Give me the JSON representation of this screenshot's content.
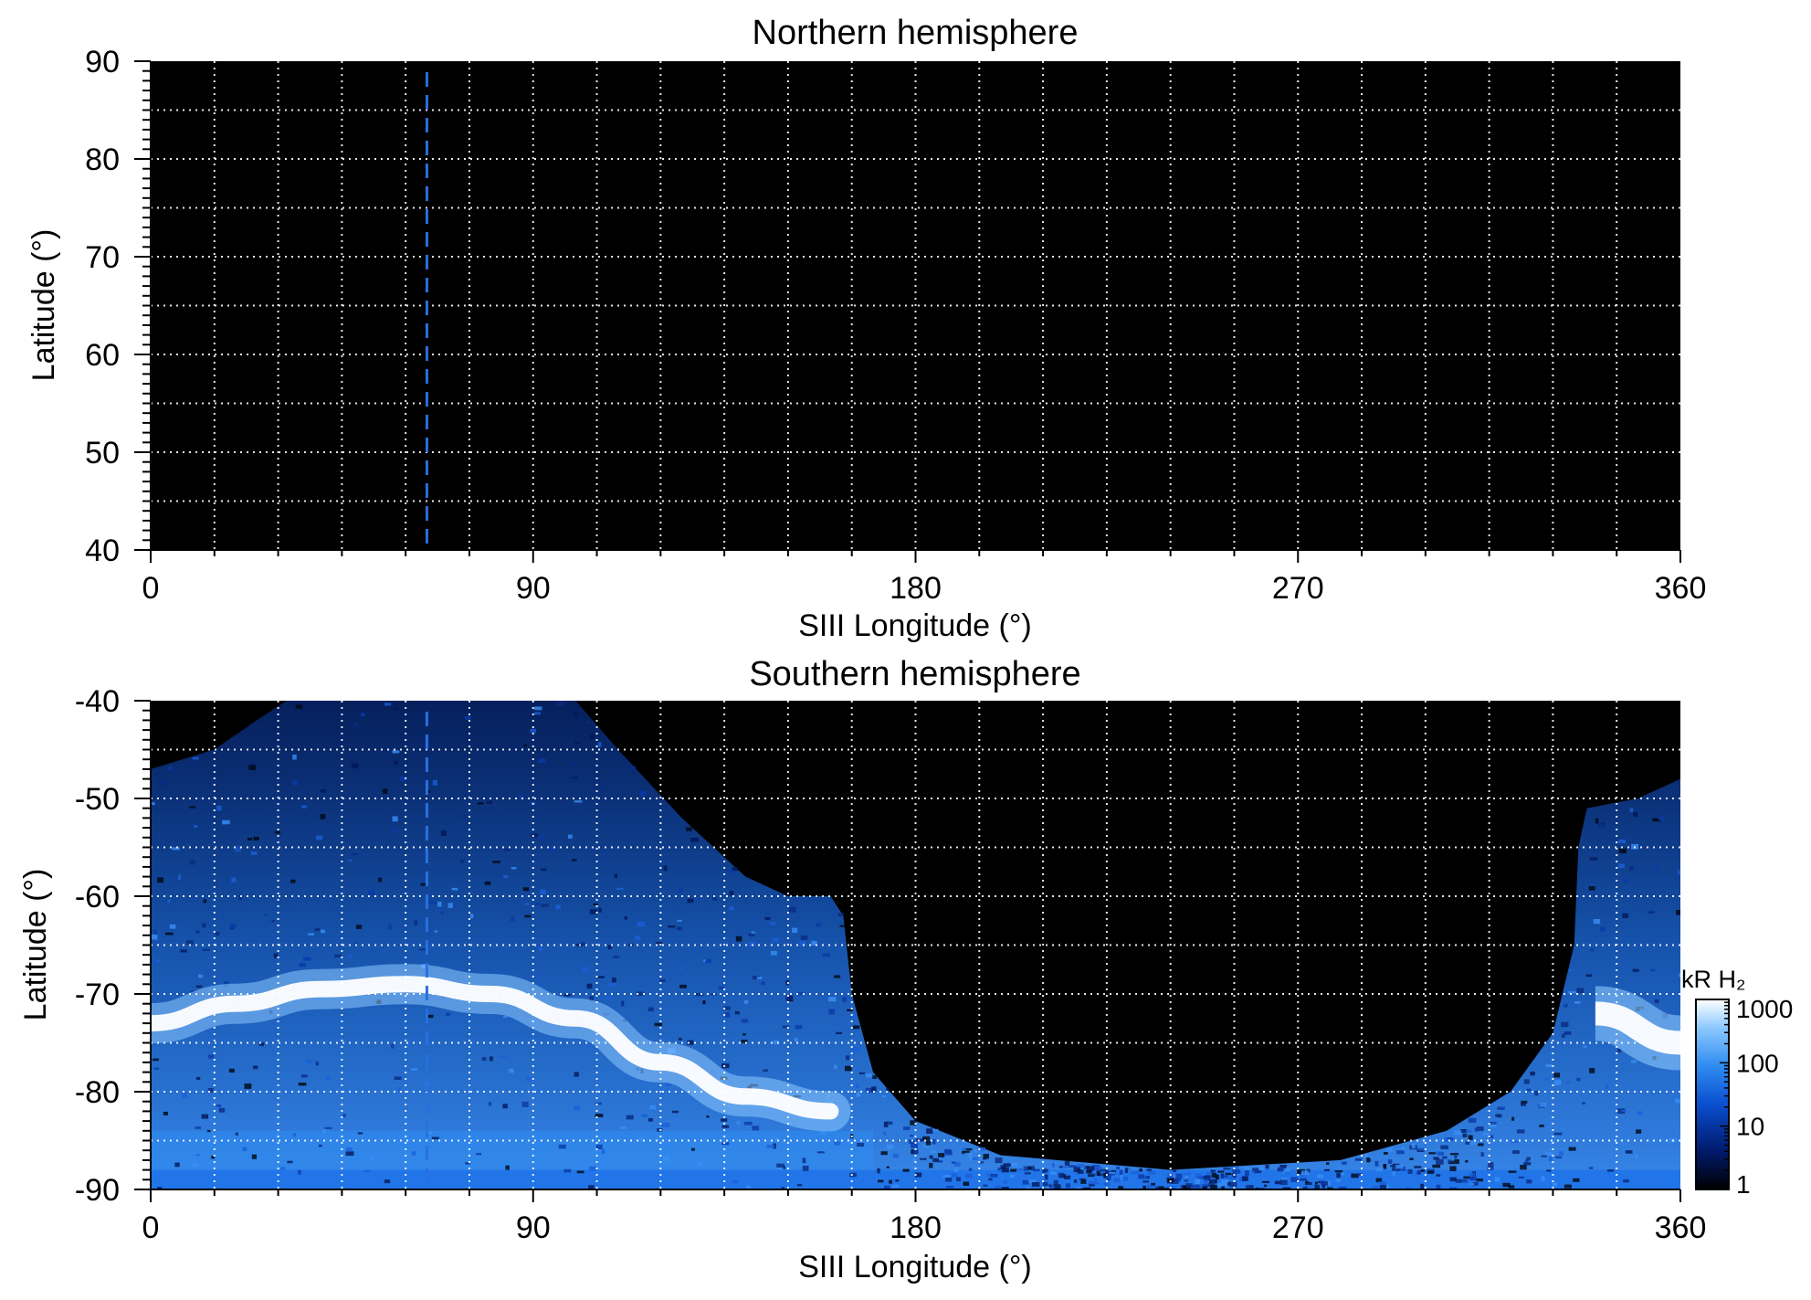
{
  "chart_data": [
    {
      "type": "heatmap",
      "title": "Northern hemisphere",
      "xlabel": "SIII Longitude (°)",
      "ylabel": "Latitude (°)",
      "xlim": [
        0,
        360
      ],
      "ylim": [
        40,
        90
      ],
      "xticks": [
        "0",
        "90",
        "180",
        "270",
        "360"
      ],
      "yticks": [
        "40",
        "50",
        "60",
        "70",
        "80",
        "90"
      ],
      "grid": true,
      "grid_x_step": 15,
      "grid_y_step": 5,
      "background_color": "#000000",
      "grid_color": "#ffffff",
      "marker_line": {
        "x": 65,
        "style": "dashed",
        "color": "#2a6fe0"
      },
      "emission": "none"
    },
    {
      "type": "heatmap",
      "title": "Southern hemisphere",
      "xlabel": "SIII Longitude (°)",
      "ylabel": "Latitude (°)",
      "xlim": [
        0,
        360
      ],
      "ylim": [
        -90,
        -40
      ],
      "xticks": [
        "0",
        "90",
        "180",
        "270",
        "360"
      ],
      "yticks": [
        "-40",
        "-50",
        "-60",
        "-70",
        "-80",
        "-90"
      ],
      "grid": true,
      "grid_x_step": 15,
      "grid_y_step": 5,
      "background_color": "#000000",
      "grid_color": "#ffffff",
      "marker_line": {
        "x": 65,
        "style": "dashed",
        "color": "#2a6fe0"
      },
      "main_oval": [
        {
          "x": 0,
          "y": -73
        },
        {
          "x": 20,
          "y": -71
        },
        {
          "x": 40,
          "y": -69.5
        },
        {
          "x": 60,
          "y": -69
        },
        {
          "x": 80,
          "y": -70
        },
        {
          "x": 100,
          "y": -72.5
        },
        {
          "x": 120,
          "y": -77
        },
        {
          "x": 140,
          "y": -80.5
        },
        {
          "x": 160,
          "y": -82
        },
        {
          "x": 340,
          "y": -72
        },
        {
          "x": 360,
          "y": -75
        }
      ],
      "emission_boundary": [
        {
          "x": 0,
          "y": -47
        },
        {
          "x": 15,
          "y": -45
        },
        {
          "x": 25,
          "y": -42
        },
        {
          "x": 32,
          "y": -40
        },
        {
          "x": 100,
          "y": -40
        },
        {
          "x": 110,
          "y": -45
        },
        {
          "x": 125,
          "y": -52
        },
        {
          "x": 140,
          "y": -58
        },
        {
          "x": 150,
          "y": -60
        },
        {
          "x": 160,
          "y": -60
        },
        {
          "x": 163,
          "y": -62
        },
        {
          "x": 165,
          "y": -70
        },
        {
          "x": 170,
          "y": -78
        },
        {
          "x": 180,
          "y": -83
        },
        {
          "x": 200,
          "y": -86.5
        },
        {
          "x": 240,
          "y": -88
        },
        {
          "x": 280,
          "y": -87
        },
        {
          "x": 305,
          "y": -84
        },
        {
          "x": 320,
          "y": -80
        },
        {
          "x": 330,
          "y": -74
        },
        {
          "x": 335,
          "y": -65
        },
        {
          "x": 336,
          "y": -55
        },
        {
          "x": 338,
          "y": -51
        },
        {
          "x": 350,
          "y": -50
        },
        {
          "x": 360,
          "y": -48
        }
      ],
      "colorbar": {
        "label": "kR H₂",
        "scale": "log",
        "ticks": [
          "1",
          "10",
          "100",
          "1000"
        ],
        "range": [
          1,
          1000
        ],
        "colors": [
          "#000000",
          "#001a6b",
          "#0a4fd0",
          "#2f8cf0",
          "#8cc8ff",
          "#ffffff"
        ]
      }
    }
  ]
}
